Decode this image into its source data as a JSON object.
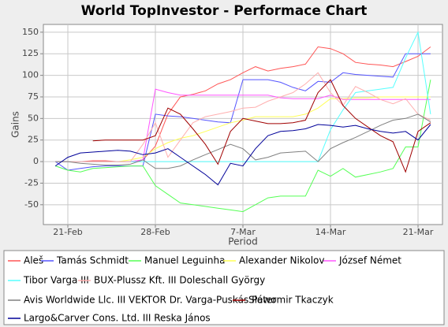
{
  "chart_data": {
    "type": "line",
    "title": "World TopInvestor - Performace Chart",
    "x_label": "Period",
    "y_label": "Gains",
    "categories": [
      null,
      null,
      "21-Feb",
      null,
      null,
      null,
      null,
      null,
      null,
      "28-Feb",
      null,
      null,
      null,
      null,
      null,
      null,
      "7-Mar",
      null,
      null,
      null,
      null,
      null,
      null,
      "14-Mar",
      null,
      null,
      null,
      null,
      null,
      null,
      "21-Mar",
      null,
      null
    ],
    "ylim": [
      -73,
      159
    ],
    "yticks": [
      -50,
      -25,
      0,
      25,
      50,
      75,
      100,
      125,
      150
    ],
    "grid": true,
    "series": [
      {
        "name": "Aleš",
        "color": "#ff5555",
        "values": [
          null,
          0,
          0,
          0,
          1,
          1,
          0,
          0,
          2,
          18,
          55,
          75,
          78,
          82,
          90,
          95,
          103,
          110,
          105,
          108,
          110,
          113,
          133,
          131,
          125,
          115,
          113,
          112,
          110,
          116,
          122,
          133,
          null
        ]
      },
      {
        "name": "Tamás Schmidt",
        "color": "#5555ff",
        "values": [
          null,
          0,
          -10,
          -8,
          -6,
          -5,
          -5,
          -5,
          -5,
          55,
          53,
          52,
          50,
          48,
          46,
          45,
          95,
          95,
          95,
          92,
          86,
          82,
          93,
          92,
          103,
          101,
          100,
          99,
          98,
          125,
          125,
          125,
          null
        ]
      },
      {
        "name": "Manuel Leguinha",
        "color": "#55ff55",
        "values": [
          null,
          -5,
          -10,
          -12,
          -8,
          -7,
          -6,
          -5,
          -5,
          -28,
          -38,
          -48,
          -50,
          -52,
          -54,
          -56,
          -58,
          -50,
          -42,
          -40,
          -40,
          -40,
          -10,
          -17,
          -8,
          -18,
          -15,
          -12,
          -8,
          17,
          17,
          95,
          null
        ]
      },
      {
        "name": "Alexander Nikolov",
        "color": "#ffff55",
        "values": [
          null,
          0,
          0,
          0,
          0,
          0,
          0,
          2,
          5,
          15,
          22,
          27,
          30,
          35,
          40,
          45,
          48,
          52,
          52,
          52,
          52,
          55,
          62,
          73,
          73,
          74,
          74,
          75,
          75,
          75,
          75,
          75,
          null
        ]
      },
      {
        "name": "József Német",
        "color": "#ff55ff",
        "values": [
          null,
          0,
          0,
          0,
          0,
          0,
          0,
          0,
          2,
          84,
          80,
          77,
          77,
          77,
          77,
          77,
          77,
          77,
          77,
          74,
          73,
          73,
          73,
          77,
          72,
          72,
          72,
          72,
          72,
          72,
          72,
          72,
          null
        ]
      },
      {
        "name": "Tibor Varga III",
        "color": "#55ffff",
        "values": [
          null,
          0,
          0,
          0,
          0,
          0,
          0,
          0,
          0,
          0,
          0,
          0,
          0,
          0,
          0,
          0,
          0,
          0,
          0,
          0,
          0,
          0,
          0,
          37,
          60,
          80,
          82,
          84,
          86,
          120,
          150,
          55,
          null
        ]
      },
      {
        "name": "BUX-Plussz Kft. III Doleschall György",
        "color": "#ffafaf",
        "values": [
          null,
          0,
          0,
          0,
          0,
          0,
          0,
          0,
          20,
          45,
          5,
          25,
          45,
          52,
          55,
          58,
          62,
          63,
          70,
          75,
          80,
          90,
          103,
          80,
          65,
          87,
          80,
          72,
          67,
          73,
          55,
          48,
          null
        ]
      },
      {
        "name": "Avis Worldwide Llc. III VEKTOR Dr. Varga-Puskás Péter",
        "color": "#808080",
        "values": [
          null,
          0,
          0,
          -2,
          -3,
          -4,
          -4,
          -3,
          2,
          -8,
          -8,
          -5,
          2,
          8,
          14,
          20,
          15,
          2,
          5,
          10,
          11,
          12,
          0,
          15,
          22,
          28,
          35,
          42,
          48,
          50,
          55,
          46,
          null
        ]
      },
      {
        "name": "Sławomir Tkaczyk",
        "color": "#a00000",
        "values": [
          null,
          null,
          null,
          null,
          24,
          25,
          25,
          25,
          25,
          30,
          62,
          55,
          38,
          20,
          -3,
          35,
          50,
          47,
          44,
          44,
          45,
          48,
          80,
          95,
          65,
          50,
          40,
          30,
          23,
          -12,
          35,
          45,
          null
        ]
      },
      {
        "name": "Largo&Carver Cons. Ltd. III Reska János",
        "color": "#000099",
        "values": [
          null,
          -5,
          5,
          10,
          11,
          12,
          13,
          12,
          8,
          10,
          15,
          5,
          -5,
          -15,
          -27,
          -2,
          -5,
          15,
          30,
          35,
          36,
          38,
          43,
          42,
          40,
          42,
          38,
          35,
          33,
          35,
          25,
          43,
          null
        ]
      }
    ]
  }
}
